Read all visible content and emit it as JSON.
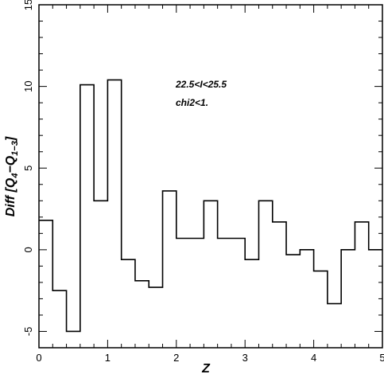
{
  "chart_data": {
    "type": "line",
    "subtype": "step-histogram",
    "title": "",
    "xlabel": "Z",
    "ylabel": "Diff [Q",
    "ylabel_sub1": "4",
    "ylabel_mid": "−Q",
    "ylabel_sub2": "1−3",
    "ylabel_end": "]",
    "xlim": [
      0,
      5
    ],
    "ylim": [
      -6,
      15
    ],
    "xticks": [
      "0",
      "1",
      "2",
      "3",
      "4",
      "5"
    ],
    "yticks": [
      "-5",
      "0",
      "5",
      "10",
      "15"
    ],
    "grid": false,
    "legend": "none",
    "annotations": [
      "22.5<I<25.5",
      "chi2<1."
    ],
    "bin_edges": [
      0.0,
      0.2,
      0.4,
      0.6,
      0.8,
      1.0,
      1.2,
      1.4,
      1.6,
      1.8,
      2.0,
      2.2,
      2.4,
      2.6,
      2.8,
      3.0,
      3.2,
      3.4,
      3.6,
      3.8,
      4.0,
      4.2,
      4.4,
      4.6,
      4.8,
      5.0
    ],
    "values": [
      1.8,
      -2.5,
      -5.0,
      10.1,
      3.0,
      10.4,
      -0.6,
      -1.9,
      -2.3,
      3.6,
      0.7,
      0.7,
      3.0,
      0.7,
      0.7,
      -0.6,
      3.0,
      1.7,
      -0.3,
      0.0,
      -1.3,
      -3.3,
      0.0,
      1.7,
      0.0
    ]
  }
}
